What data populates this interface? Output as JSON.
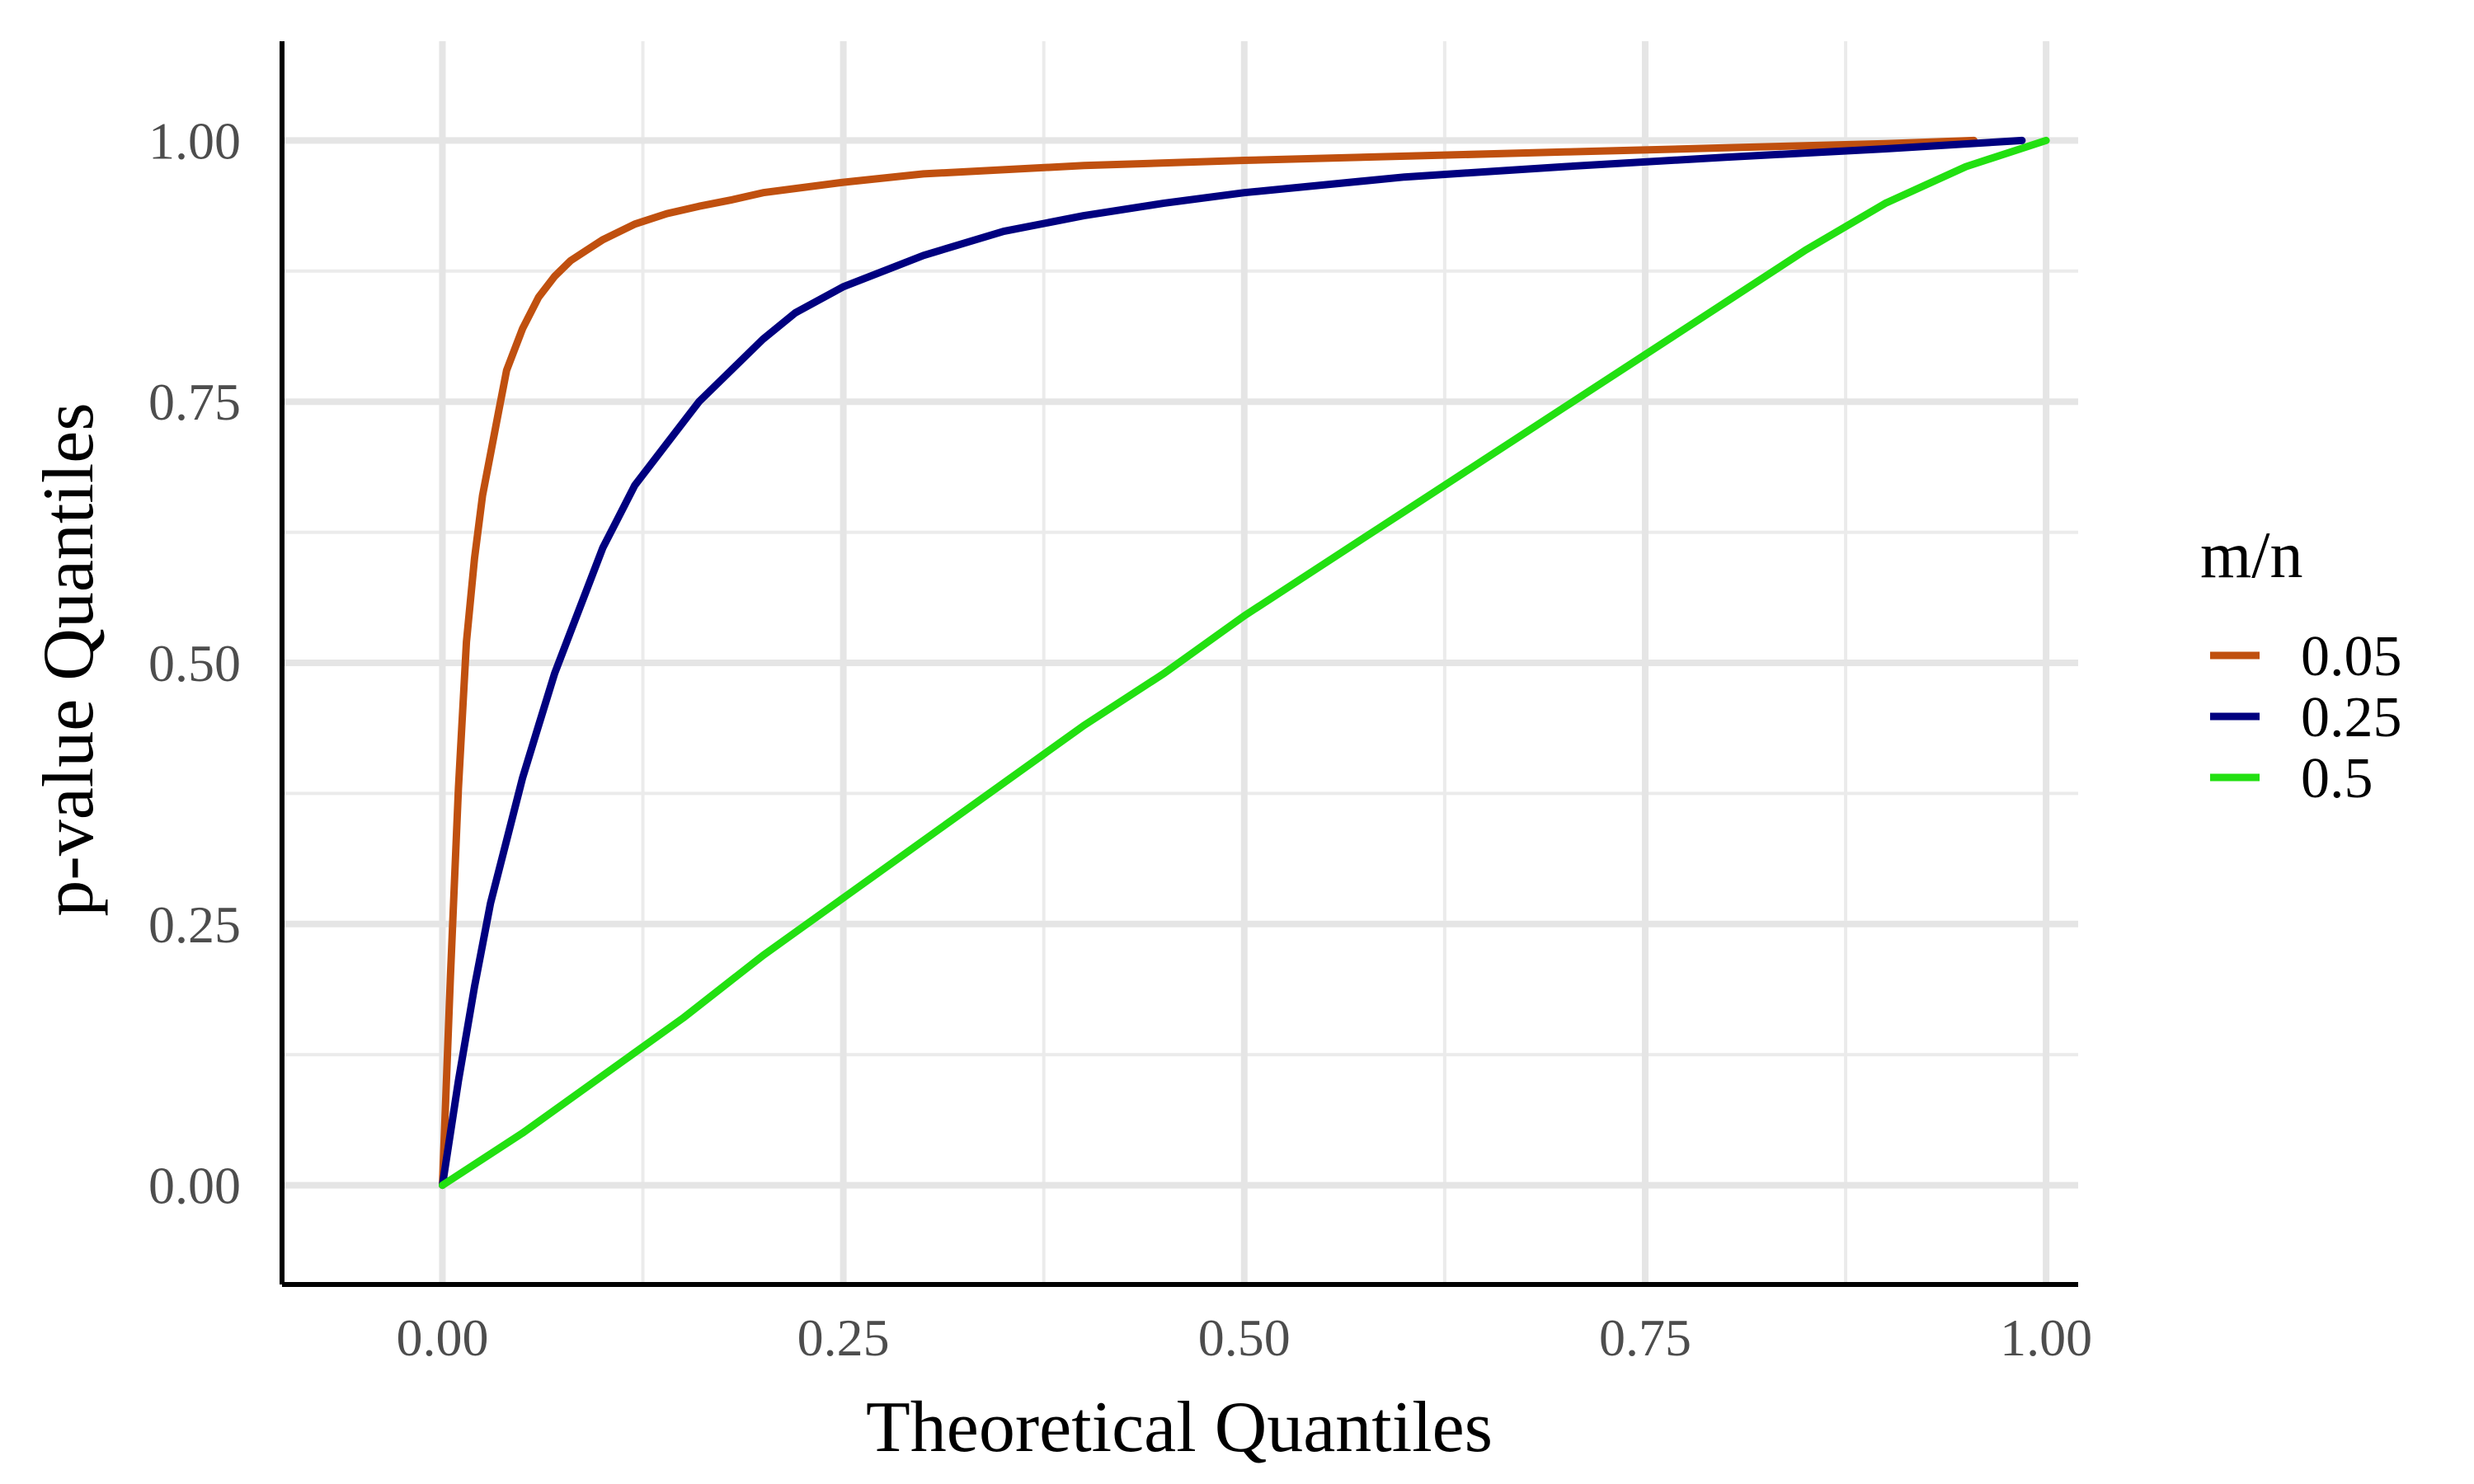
{
  "chart_data": {
    "type": "line",
    "xlabel": "Theoretical Quantiles",
    "ylabel": "p-value Quantiles",
    "xlim": [
      -0.1,
      1.02
    ],
    "ylim": [
      -0.095,
      1.095
    ],
    "x_ticks": [
      {
        "value": 0.0,
        "label": "0.00"
      },
      {
        "value": 0.25,
        "label": "0.25"
      },
      {
        "value": 0.5,
        "label": "0.50"
      },
      {
        "value": 0.75,
        "label": "0.75"
      },
      {
        "value": 1.0,
        "label": "1.00"
      }
    ],
    "y_ticks": [
      {
        "value": 0.0,
        "label": "0.00"
      },
      {
        "value": 0.25,
        "label": "0.25"
      },
      {
        "value": 0.5,
        "label": "0.50"
      },
      {
        "value": 0.75,
        "label": "0.75"
      },
      {
        "value": 1.0,
        "label": "1.00"
      }
    ],
    "grid": true,
    "legend": {
      "title": "m/n",
      "position": "right"
    },
    "series": [
      {
        "name": "0.05",
        "color": "#c0500f",
        "x": [
          0.0,
          0.005,
          0.01,
          0.015,
          0.02,
          0.025,
          0.03,
          0.035,
          0.04,
          0.045,
          0.05,
          0.06,
          0.07,
          0.08,
          0.09,
          0.1,
          0.12,
          0.14,
          0.16,
          0.18,
          0.2,
          0.25,
          0.3,
          0.4,
          0.5,
          0.6,
          0.7,
          0.8,
          0.9,
          0.955
        ],
        "y": [
          0.0,
          0.2,
          0.38,
          0.52,
          0.6,
          0.66,
          0.7,
          0.74,
          0.78,
          0.8,
          0.82,
          0.85,
          0.87,
          0.885,
          0.895,
          0.905,
          0.92,
          0.93,
          0.937,
          0.943,
          0.95,
          0.96,
          0.968,
          0.976,
          0.981,
          0.985,
          0.989,
          0.993,
          0.997,
          1.0
        ]
      },
      {
        "name": "0.25",
        "color": "#00007f",
        "x": [
          0.0,
          0.01,
          0.02,
          0.03,
          0.04,
          0.05,
          0.06,
          0.07,
          0.08,
          0.09,
          0.1,
          0.11,
          0.12,
          0.14,
          0.16,
          0.18,
          0.2,
          0.22,
          0.25,
          0.3,
          0.35,
          0.4,
          0.45,
          0.5,
          0.6,
          0.7,
          0.8,
          0.9,
          0.985
        ],
        "y": [
          0.0,
          0.1,
          0.19,
          0.27,
          0.33,
          0.39,
          0.44,
          0.49,
          0.53,
          0.57,
          0.61,
          0.64,
          0.67,
          0.71,
          0.75,
          0.78,
          0.81,
          0.835,
          0.86,
          0.89,
          0.913,
          0.928,
          0.94,
          0.95,
          0.965,
          0.975,
          0.984,
          0.992,
          1.0
        ]
      },
      {
        "name": "0.5",
        "color": "#22e011",
        "x": [
          0.0,
          0.05,
          0.1,
          0.15,
          0.2,
          0.25,
          0.3,
          0.35,
          0.4,
          0.45,
          0.5,
          0.55,
          0.6,
          0.65,
          0.7,
          0.75,
          0.8,
          0.85,
          0.9,
          0.95,
          1.0
        ],
        "y": [
          0.0,
          0.05,
          0.105,
          0.16,
          0.22,
          0.275,
          0.33,
          0.385,
          0.44,
          0.49,
          0.545,
          0.595,
          0.645,
          0.695,
          0.745,
          0.795,
          0.845,
          0.895,
          0.94,
          0.975,
          1.0
        ]
      }
    ]
  }
}
